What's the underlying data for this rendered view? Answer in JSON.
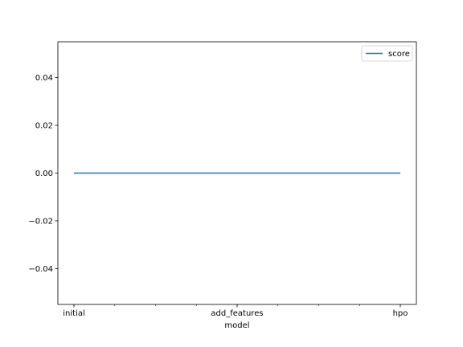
{
  "chart_data": {
    "type": "line",
    "title": "",
    "xlabel": "model",
    "ylabel": "",
    "categories": [
      "initial",
      "add_features",
      "hpo"
    ],
    "series": [
      {
        "name": "score",
        "values": [
          0.0,
          0.0,
          0.0
        ],
        "color": "#1f77b4"
      }
    ],
    "ylim": [
      -0.055,
      0.055
    ],
    "yticks": [
      -0.04,
      -0.02,
      0.0,
      0.02,
      0.04
    ],
    "ytick_labels": [
      "−0.04",
      "−0.02",
      "0.00",
      "0.02",
      "0.04"
    ],
    "x_minor_ticks": 9,
    "grid": false,
    "legend_position": "upper right"
  }
}
